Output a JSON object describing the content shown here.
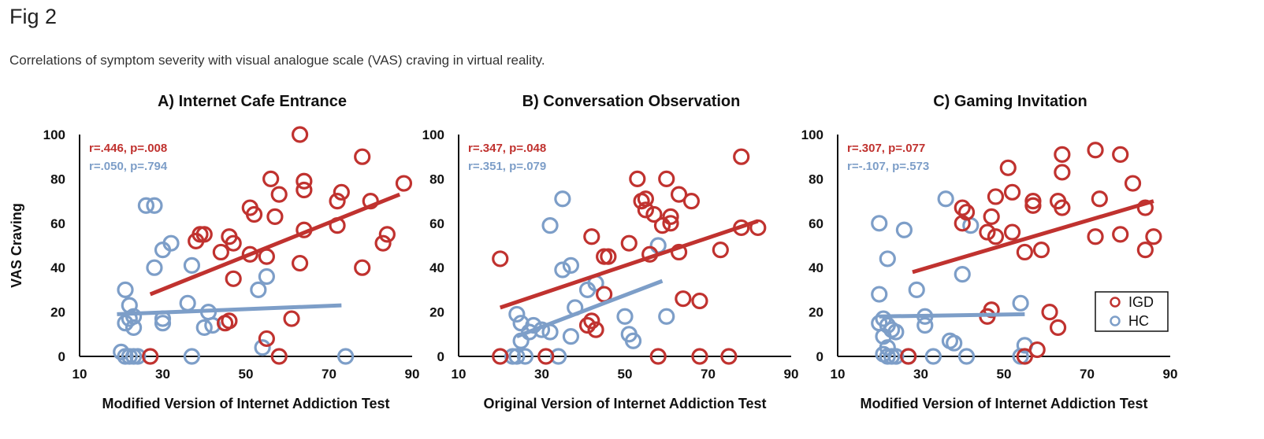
{
  "figure": {
    "label": "Fig 2",
    "caption": "Correlations of symptom severity with visual analogue scale (VAS) craving in virtual reality."
  },
  "colors": {
    "IGD": "#c0322f",
    "HC": "#7d9ec8",
    "axis": "#111111"
  },
  "legend": {
    "entries": [
      "IGD",
      "HC"
    ],
    "placement": "bottom-right of panel C"
  },
  "chart_data": [
    {
      "type": "scatter",
      "title": "A) Internet Cafe Entrance",
      "xlabel": "Modified Version of Internet Addiction Test",
      "ylabel": "VAS Craving",
      "xlim": [
        10,
        90
      ],
      "ylim": [
        0,
        100
      ],
      "xticks": [
        10,
        30,
        50,
        70,
        90
      ],
      "yticks": [
        0,
        20,
        40,
        60,
        80,
        100
      ],
      "stats": {
        "IGD": "r=.446, p=.008",
        "HC": "r=.050, p=.794"
      },
      "series": [
        {
          "name": "IGD",
          "fit": [
            [
              27,
              28
            ],
            [
              87,
              73
            ]
          ],
          "points": [
            [
              63,
              100
            ],
            [
              78,
              90
            ],
            [
              56,
              80
            ],
            [
              64,
              79
            ],
            [
              58,
              73
            ],
            [
              64,
              75
            ],
            [
              73,
              74
            ],
            [
              72,
              70
            ],
            [
              80,
              70
            ],
            [
              88,
              78
            ],
            [
              51,
              67
            ],
            [
              52,
              64
            ],
            [
              57,
              63
            ],
            [
              39,
              55
            ],
            [
              40,
              55
            ],
            [
              38,
              52
            ],
            [
              46,
              54
            ],
            [
              47,
              51
            ],
            [
              64,
              57
            ],
            [
              72,
              59
            ],
            [
              84,
              55
            ],
            [
              83,
              51
            ],
            [
              44,
              47
            ],
            [
              51,
              46
            ],
            [
              55,
              45
            ],
            [
              63,
              42
            ],
            [
              78,
              40
            ],
            [
              47,
              35
            ],
            [
              46,
              16
            ],
            [
              45,
              15
            ],
            [
              55,
              8
            ],
            [
              61,
              17
            ],
            [
              58,
              0
            ],
            [
              27,
              0
            ]
          ]
        },
        {
          "name": "HC",
          "fit": [
            [
              19,
              19
            ],
            [
              73,
              23
            ]
          ],
          "points": [
            [
              26,
              68
            ],
            [
              28,
              68
            ],
            [
              32,
              51
            ],
            [
              30,
              48
            ],
            [
              28,
              40
            ],
            [
              37,
              41
            ],
            [
              55,
              36
            ],
            [
              53,
              30
            ],
            [
              21,
              30
            ],
            [
              22,
              23
            ],
            [
              36,
              24
            ],
            [
              41,
              20
            ],
            [
              22,
              17
            ],
            [
              23,
              18
            ],
            [
              30,
              17
            ],
            [
              30,
              15
            ],
            [
              21,
              15
            ],
            [
              23,
              13
            ],
            [
              42,
              14
            ],
            [
              40,
              13
            ],
            [
              54,
              4
            ],
            [
              20,
              2
            ],
            [
              21,
              0
            ],
            [
              22,
              0
            ],
            [
              23,
              0
            ],
            [
              24,
              0
            ],
            [
              37,
              0
            ],
            [
              74,
              0
            ]
          ]
        }
      ]
    },
    {
      "type": "scatter",
      "title": "B) Conversation Observation",
      "xlabel": "Original Version of Internet Addiction Test",
      "ylabel": "",
      "xlim": [
        10,
        90
      ],
      "ylim": [
        0,
        100
      ],
      "xticks": [
        10,
        30,
        50,
        70,
        90
      ],
      "yticks": [
        0,
        20,
        40,
        60,
        80,
        100
      ],
      "stats": {
        "IGD": "r=.347, p=.048",
        "HC": "r=.351, p=.079"
      },
      "series": [
        {
          "name": "IGD",
          "fit": [
            [
              20,
              22
            ],
            [
              82,
              61
            ]
          ],
          "points": [
            [
              78,
              90
            ],
            [
              53,
              80
            ],
            [
              60,
              80
            ],
            [
              55,
              71
            ],
            [
              54,
              70
            ],
            [
              63,
              73
            ],
            [
              66,
              70
            ],
            [
              55,
              66
            ],
            [
              57,
              64
            ],
            [
              61,
              63
            ],
            [
              59,
              59
            ],
            [
              61,
              60
            ],
            [
              78,
              58
            ],
            [
              82,
              58
            ],
            [
              42,
              54
            ],
            [
              51,
              51
            ],
            [
              56,
              46
            ],
            [
              63,
              47
            ],
            [
              73,
              48
            ],
            [
              45,
              45
            ],
            [
              46,
              45
            ],
            [
              20,
              44
            ],
            [
              45,
              28
            ],
            [
              41,
              14
            ],
            [
              42,
              16
            ],
            [
              43,
              12
            ],
            [
              64,
              26
            ],
            [
              68,
              25
            ],
            [
              20,
              0
            ],
            [
              31,
              0
            ],
            [
              58,
              0
            ],
            [
              68,
              0
            ],
            [
              75,
              0
            ]
          ]
        },
        {
          "name": "HC",
          "fit": [
            [
              24,
              9
            ],
            [
              59,
              34
            ]
          ],
          "points": [
            [
              35,
              71
            ],
            [
              32,
              59
            ],
            [
              58,
              50
            ],
            [
              37,
              41
            ],
            [
              35,
              39
            ],
            [
              41,
              30
            ],
            [
              43,
              33
            ],
            [
              38,
              22
            ],
            [
              24,
              19
            ],
            [
              25,
              15
            ],
            [
              28,
              14
            ],
            [
              27,
              11
            ],
            [
              30,
              12
            ],
            [
              32,
              11
            ],
            [
              50,
              18
            ],
            [
              37,
              9
            ],
            [
              25,
              7
            ],
            [
              51,
              10
            ],
            [
              52,
              7
            ],
            [
              60,
              18
            ],
            [
              23,
              0
            ],
            [
              24,
              0
            ],
            [
              26,
              0
            ],
            [
              34,
              0
            ]
          ]
        }
      ]
    },
    {
      "type": "scatter",
      "title": "C) Gaming Invitation",
      "xlabel": "Modified Version of Internet Addiction Test",
      "ylabel": "",
      "xlim": [
        10,
        90
      ],
      "ylim": [
        0,
        100
      ],
      "xticks": [
        10,
        30,
        50,
        70,
        90
      ],
      "yticks": [
        0,
        20,
        40,
        60,
        80,
        100
      ],
      "stats": {
        "IGD": "r=.307, p=.077",
        "HC": "r=-.107, p=.573"
      },
      "series": [
        {
          "name": "IGD",
          "fit": [
            [
              28,
              38
            ],
            [
              86,
              70
            ]
          ],
          "points": [
            [
              72,
              93
            ],
            [
              78,
              91
            ],
            [
              64,
              91
            ],
            [
              51,
              85
            ],
            [
              64,
              83
            ],
            [
              81,
              78
            ],
            [
              52,
              74
            ],
            [
              48,
              72
            ],
            [
              57,
              70
            ],
            [
              63,
              70
            ],
            [
              73,
              71
            ],
            [
              57,
              68
            ],
            [
              64,
              67
            ],
            [
              40,
              67
            ],
            [
              41,
              65
            ],
            [
              47,
              63
            ],
            [
              84,
              67
            ],
            [
              40,
              60
            ],
            [
              46,
              56
            ],
            [
              48,
              54
            ],
            [
              52,
              56
            ],
            [
              72,
              54
            ],
            [
              78,
              55
            ],
            [
              86,
              54
            ],
            [
              84,
              48
            ],
            [
              55,
              47
            ],
            [
              59,
              48
            ],
            [
              47,
              21
            ],
            [
              46,
              18
            ],
            [
              61,
              20
            ],
            [
              63,
              13
            ],
            [
              58,
              3
            ],
            [
              55,
              0
            ],
            [
              27,
              0
            ]
          ]
        },
        {
          "name": "HC",
          "fit": [
            [
              20,
              18
            ],
            [
              55,
              19
            ]
          ],
          "points": [
            [
              36,
              71
            ],
            [
              42,
              59
            ],
            [
              20,
              60
            ],
            [
              26,
              57
            ],
            [
              22,
              44
            ],
            [
              40,
              37
            ],
            [
              20,
              28
            ],
            [
              29,
              30
            ],
            [
              31,
              18
            ],
            [
              31,
              14
            ],
            [
              20,
              15
            ],
            [
              21,
              17
            ],
            [
              22,
              14
            ],
            [
              23,
              12
            ],
            [
              24,
              11
            ],
            [
              21,
              9
            ],
            [
              22,
              4
            ],
            [
              37,
              7
            ],
            [
              38,
              6
            ],
            [
              54,
              24
            ],
            [
              55,
              5
            ],
            [
              21,
              1
            ],
            [
              22,
              0
            ],
            [
              23,
              0
            ],
            [
              24,
              0
            ],
            [
              27,
              0
            ],
            [
              33,
              0
            ],
            [
              41,
              0
            ],
            [
              54,
              0
            ]
          ]
        }
      ]
    }
  ]
}
